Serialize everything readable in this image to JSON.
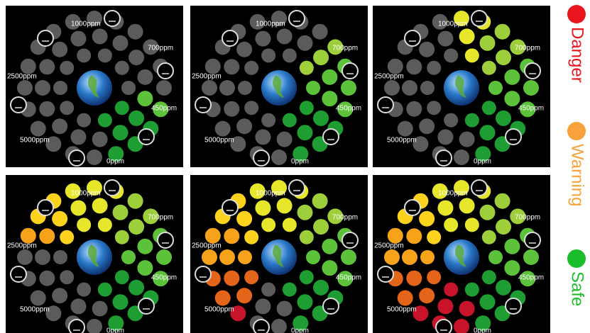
{
  "ppm_labels": [
    "1000ppm",
    "700ppm",
    "2500ppm",
    "450ppm",
    "5000ppm",
    "0ppm"
  ],
  "legend": [
    "Danger",
    "Warning",
    "Safe"
  ]
}
